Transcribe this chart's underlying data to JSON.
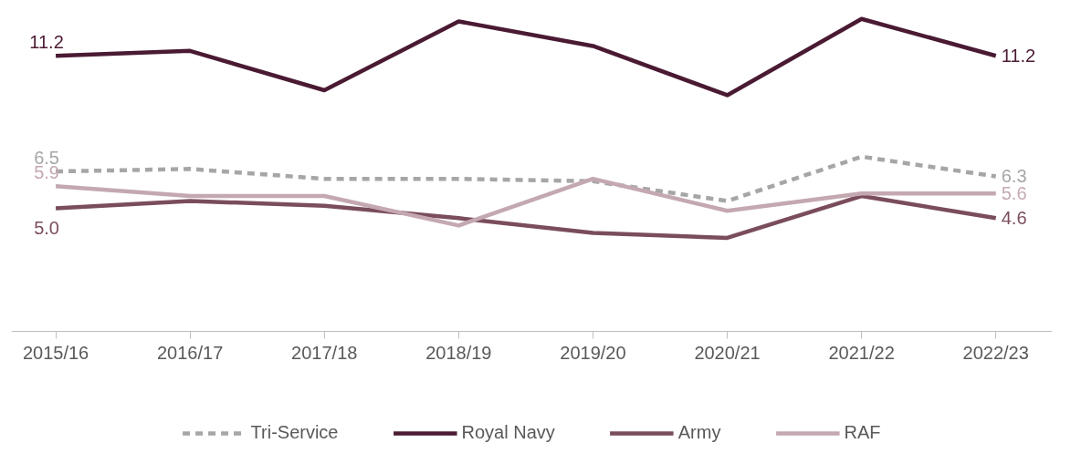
{
  "chart_data": {
    "type": "line",
    "categories": [
      "2015/16",
      "2016/17",
      "2017/18",
      "2018/19",
      "2019/20",
      "2020/21",
      "2021/22",
      "2022/23"
    ],
    "tick_labels": "x",
    "legend": "bottom",
    "series": [
      {
        "name": "Tri-Service",
        "color": "#a6a6a6",
        "line_style": "dashed",
        "values": [
          6.5,
          6.6,
          6.2,
          6.2,
          6.1,
          5.3,
          7.1,
          6.3
        ],
        "value_labels": [
          "6.5",
          null,
          null,
          null,
          null,
          null,
          null,
          "6.3"
        ]
      },
      {
        "name": "Royal Navy",
        "color": "#4a1a33",
        "line_style": "solid",
        "values": [
          11.2,
          11.4,
          9.8,
          12.6,
          11.6,
          9.6,
          12.7,
          11.2
        ],
        "value_labels": [
          "11.2",
          null,
          null,
          null,
          null,
          null,
          null,
          "11.2"
        ]
      },
      {
        "name": "Army",
        "color": "#7a4d5c",
        "line_style": "solid",
        "values": [
          5.0,
          5.3,
          5.1,
          4.6,
          4.0,
          3.8,
          5.5,
          4.6
        ],
        "value_labels": [
          "5.0",
          null,
          null,
          null,
          null,
          null,
          null,
          "4.6"
        ]
      },
      {
        "name": "RAF",
        "color": "#c4a8b0",
        "line_style": "solid",
        "values": [
          5.9,
          5.5,
          5.5,
          4.3,
          6.2,
          4.9,
          5.6,
          5.6
        ],
        "value_labels": [
          "5.9",
          null,
          null,
          null,
          null,
          null,
          null,
          "5.6"
        ]
      }
    ]
  }
}
